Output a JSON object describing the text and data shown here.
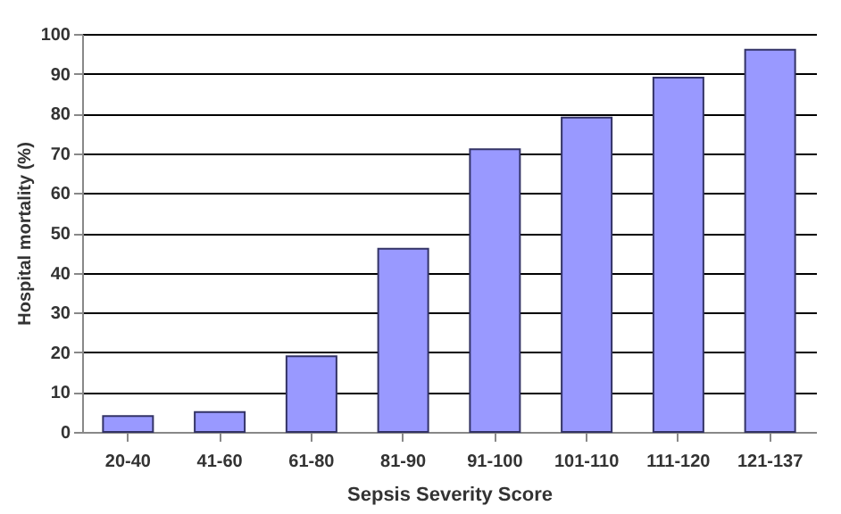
{
  "chart_data": {
    "type": "bar",
    "xlabel": "Sepsis Severity Score",
    "ylabel": "Hospital mortality (%)",
    "categories": [
      "20-40",
      "41-60",
      "61-80",
      "81-90",
      "91-100",
      "101-110",
      "111-120",
      "121-137"
    ],
    "values": [
      4,
      5,
      19,
      46,
      71,
      79,
      89,
      96
    ],
    "color": "#9999ff",
    "ylim": [
      0,
      100
    ],
    "yticks": [
      0,
      10,
      20,
      30,
      40,
      50,
      60,
      70,
      80,
      90,
      100
    ],
    "grid": "y"
  }
}
